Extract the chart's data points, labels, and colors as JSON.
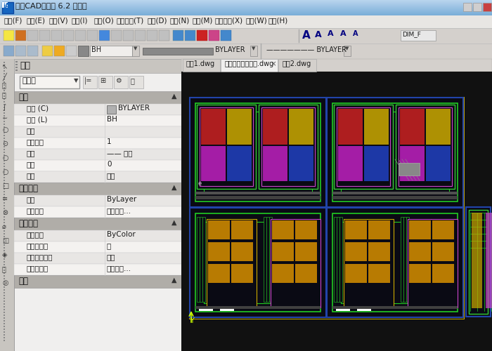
{
  "title_bar": "迅捷CAD编辑器 6.2 专业版",
  "menu_items": [
    "文件(F)",
    "编辑(E)",
    "视图(V)",
    "插入(I)",
    "格式(O)",
    "定制工具(T)",
    "绘图(D)",
    "标注(N)",
    "修改(M)",
    "扩展工具(X)",
    "窗口(W)",
    "帮助(H)"
  ],
  "panel_title": "属性",
  "dropdown_label": "无选择",
  "sections": [
    {
      "name": "常规",
      "rows": [
        [
          "颜色 (C)",
          "BYLAYER"
        ],
        [
          "图层 (L)",
          "BH"
        ],
        [
          "线型",
          ""
        ],
        [
          "线型比例",
          "1"
        ],
        [
          "线宽",
          "—— 随层"
        ],
        [
          "厚度",
          "0"
        ],
        [
          "透明",
          "随层"
        ]
      ]
    },
    {
      "name": "三维效果",
      "rows": [
        [
          "材质",
          "ByLayer"
        ],
        [
          "阴影显示",
          "投下阴影..."
        ]
      ]
    },
    {
      "name": "打印样式",
      "rows": [
        [
          "打印样式",
          "ByColor"
        ],
        [
          "打印样式表",
          "无"
        ],
        [
          "打印表附加到",
          "模型"
        ],
        [
          "打印表类型",
          "命名的打..."
        ]
      ]
    },
    {
      "name": "视图",
      "rows": []
    }
  ],
  "tabs": [
    "图纸1.dwg",
    "私人住宅楼全套图.dwg",
    "图纸2.dwg"
  ],
  "active_tab": 1,
  "title_grad_top": "#b8d4ee",
  "title_grad_bot": "#7aaed8",
  "menu_bg": "#e8e8e8",
  "toolbar_bg": "#d4d0cc",
  "panel_header_bg": "#c0bdb8",
  "panel_bg": "#f0efee",
  "section_bg": "#b0ada8",
  "row_bg_even": "#e8e6e4",
  "row_bg_odd": "#f4f2f0",
  "left_bar_bg": "#c8c5c0",
  "canvas_bg": "#1e1e1e",
  "tab_active_bg": "#f0efee",
  "tab_inactive_bg": "#d4d0cc",
  "vp_outer_border": "#c8a800",
  "vp_inner_border": "#2244aa",
  "vp_bg": "#0a0a14"
}
